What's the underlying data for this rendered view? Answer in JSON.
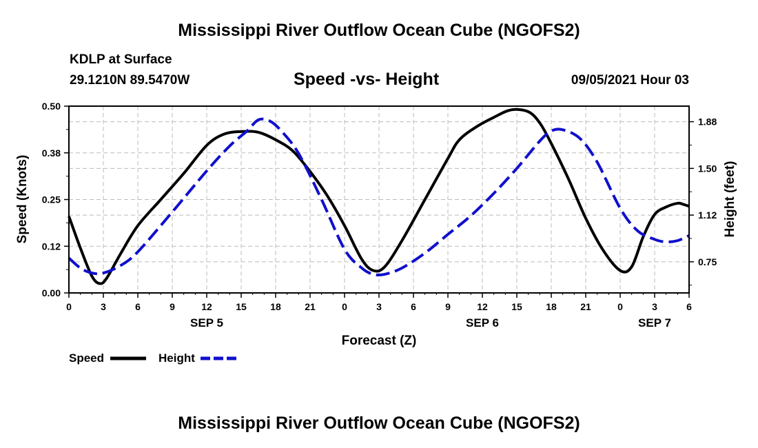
{
  "header": {
    "title_top": "Mississippi River Outflow Ocean Cube (NGOFS2)",
    "station": "KDLP at Surface",
    "location": "29.1210N  89.5470W",
    "datetime": "09/05/2021 Hour 03",
    "title_bottom": "Mississippi River Outflow Ocean Cube (NGOFS2)"
  },
  "colors": {
    "speed": "#000000",
    "height": "#1010cc",
    "grid": "#bbbbbb"
  },
  "chart_data": {
    "type": "line",
    "title": "Speed -vs- Height",
    "xlabel": "Forecast (Z)",
    "ylabel_left": "Speed (Knots)",
    "ylabel_right": "Height (feet)",
    "x_range": [
      0,
      54
    ],
    "x_tick_values": [
      0,
      3,
      6,
      9,
      12,
      15,
      18,
      21,
      24,
      27,
      30,
      33,
      36,
      39,
      42,
      45,
      48,
      51,
      54
    ],
    "x_tick_labels": [
      "0",
      "3",
      "6",
      "9",
      "12",
      "15",
      "18",
      "21",
      "0",
      "3",
      "6",
      "9",
      "12",
      "15",
      "18",
      "21",
      "0",
      "3",
      "6"
    ],
    "day_labels": [
      {
        "x": 12,
        "label": "SEP 5"
      },
      {
        "x": 36,
        "label": "SEP 6"
      },
      {
        "x": 51,
        "label": "SEP 7"
      }
    ],
    "y_left_range": [
      0,
      0.5
    ],
    "y_left_ticks": [
      0.0,
      0.125,
      0.25,
      0.375,
      0.5
    ],
    "y_left_tick_labels": [
      "0.00",
      "0.12",
      "0.25",
      "0.38",
      "0.50"
    ],
    "y_right_range": [
      0.5,
      2.0
    ],
    "y_right_ticks": [
      0.75,
      1.125,
      1.5,
      1.875
    ],
    "y_right_tick_labels": [
      "0.75",
      "1.12",
      "1.50",
      "1.88"
    ],
    "grid": true,
    "legend": [
      "Speed",
      "Height"
    ],
    "series": [
      {
        "name": "Speed",
        "axis": "left",
        "style": "solid",
        "x": [
          0,
          1,
          2,
          2.7,
          3.3,
          4.5,
          6,
          8,
          10,
          12,
          13.5,
          15,
          16.5,
          18,
          19.5,
          21,
          22.5,
          24,
          25.5,
          26.5,
          27.5,
          29,
          31,
          33,
          34,
          35.5,
          37,
          38.5,
          40,
          41,
          42,
          43.5,
          45,
          46.5,
          48,
          49,
          50,
          51,
          52,
          53,
          53.5,
          54
        ],
        "values": [
          0.205,
          0.12,
          0.045,
          0.025,
          0.04,
          0.105,
          0.18,
          0.25,
          0.32,
          0.395,
          0.425,
          0.432,
          0.43,
          0.41,
          0.38,
          0.325,
          0.26,
          0.18,
          0.09,
          0.06,
          0.07,
          0.14,
          0.25,
          0.36,
          0.41,
          0.445,
          0.47,
          0.49,
          0.485,
          0.455,
          0.4,
          0.305,
          0.2,
          0.115,
          0.06,
          0.07,
          0.15,
          0.21,
          0.23,
          0.24,
          0.237,
          0.232
        ]
      },
      {
        "name": "Height",
        "axis": "right",
        "style": "dashed",
        "x": [
          0,
          1,
          2,
          3,
          4.5,
          6,
          9,
          12,
          14,
          15.5,
          16.5,
          17.5,
          18.5,
          20,
          22,
          24,
          25.5,
          26.5,
          27.5,
          29,
          31,
          33,
          35,
          37,
          39,
          41,
          42,
          43,
          44.5,
          46,
          48,
          49.5,
          51,
          52,
          53,
          54
        ],
        "values": [
          0.78,
          0.7,
          0.66,
          0.66,
          0.72,
          0.83,
          1.15,
          1.48,
          1.68,
          1.8,
          1.89,
          1.88,
          1.8,
          1.62,
          1.25,
          0.85,
          0.7,
          0.65,
          0.65,
          0.7,
          0.82,
          0.97,
          1.12,
          1.3,
          1.5,
          1.72,
          1.8,
          1.81,
          1.74,
          1.55,
          1.18,
          1.0,
          0.93,
          0.91,
          0.92,
          0.96
        ]
      }
    ]
  }
}
